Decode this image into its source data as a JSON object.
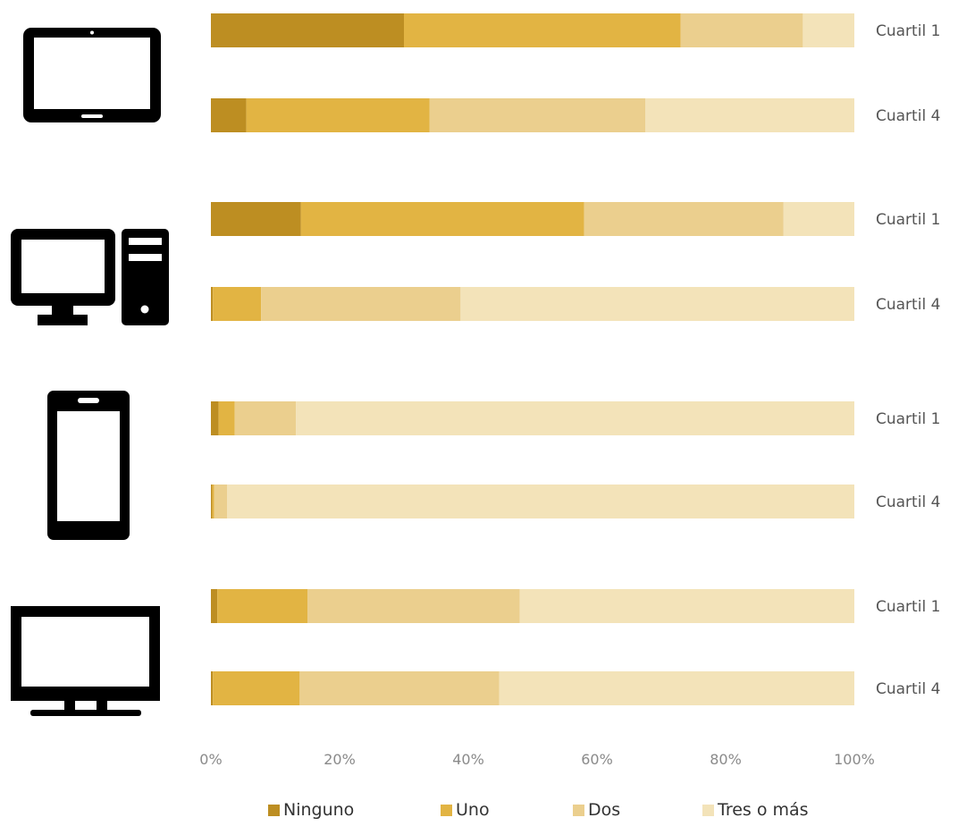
{
  "chart_data": {
    "type": "bar",
    "orientation": "horizontal",
    "stacked": true,
    "percent": true,
    "groups": [
      {
        "device_icon": "tablet-icon"
      },
      {
        "device_icon": "desktop-computer-icon"
      },
      {
        "device_icon": "smartphone-icon"
      },
      {
        "device_icon": "television-icon"
      }
    ],
    "rows": [
      {
        "group": 0,
        "label": "Cuartil 1",
        "values": [
          30,
          43,
          19,
          8
        ]
      },
      {
        "group": 0,
        "label": "Cuartil 4",
        "values": [
          5.5,
          28.5,
          33.5,
          32.5
        ]
      },
      {
        "group": 1,
        "label": "Cuartil 1",
        "values": [
          14,
          44,
          31,
          11
        ]
      },
      {
        "group": 1,
        "label": "Cuartil 4",
        "values": [
          0.3,
          7.5,
          31,
          61.2
        ]
      },
      {
        "group": 2,
        "label": "Cuartil 1",
        "values": [
          1.2,
          2.5,
          9.5,
          86.8
        ]
      },
      {
        "group": 2,
        "label": "Cuartil 4",
        "values": [
          0.2,
          0.3,
          2,
          97.5
        ]
      },
      {
        "group": 3,
        "label": "Cuartil 1",
        "values": [
          1,
          14,
          33,
          52
        ]
      },
      {
        "group": 3,
        "label": "Cuartil 4",
        "values": [
          0.3,
          13.5,
          31,
          55.2
        ]
      }
    ],
    "series": [
      {
        "name": "Ninguno",
        "color": "#bd8e22"
      },
      {
        "name": "Uno",
        "color": "#e2b443"
      },
      {
        "name": "Dos",
        "color": "#ebcf8e"
      },
      {
        "name": "Tres o más",
        "color": "#f3e3b9"
      }
    ],
    "x_ticks": [
      "0%",
      "20%",
      "40%",
      "60%",
      "80%",
      "100%"
    ],
    "xlim": [
      0,
      100
    ],
    "grid": false,
    "legend_position": "bottom"
  }
}
